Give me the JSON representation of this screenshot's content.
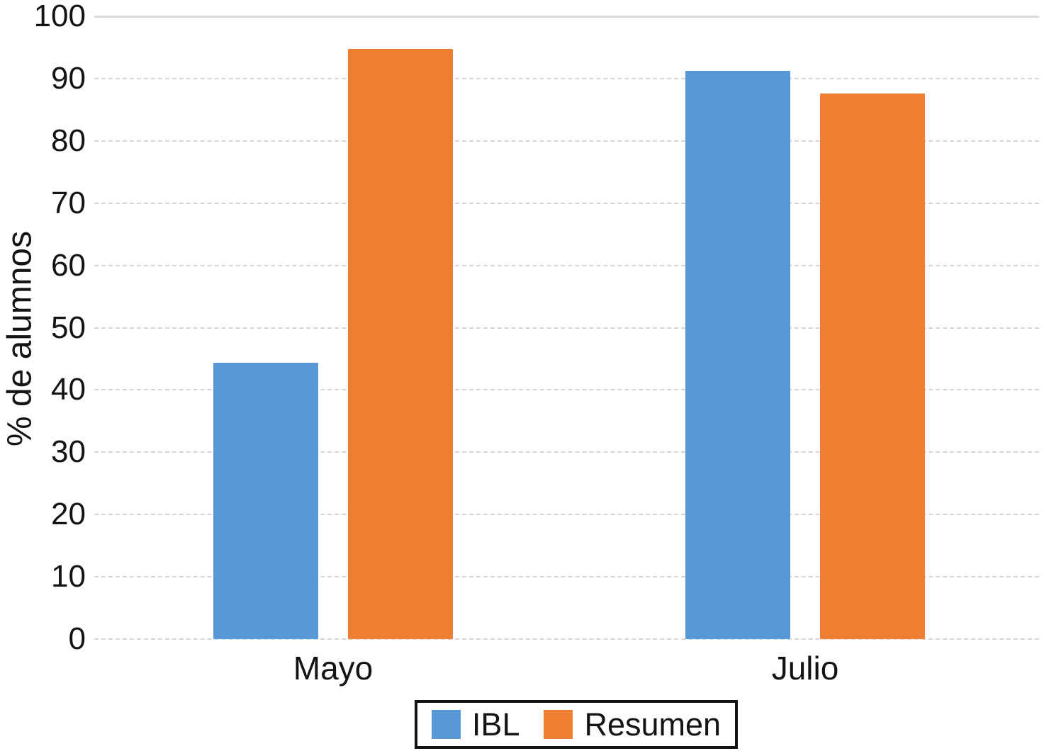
{
  "figure": {
    "background_color": "#ffffff",
    "gridline_color": "#d6d6d6",
    "text_color": "#141414"
  },
  "chart_data": {
    "type": "bar",
    "title": "",
    "xlabel": "",
    "ylabel": "% de alumnos",
    "categories": [
      "Mayo",
      "Julio"
    ],
    "series": [
      {
        "name": "IBL",
        "color": "#5899D5",
        "values": [
          44.4,
          91.2
        ]
      },
      {
        "name": "Resumen",
        "color": "#EE7E32",
        "values": [
          94.8,
          87.6
        ]
      }
    ],
    "ylim": [
      0,
      100
    ],
    "yticks": [
      0,
      10,
      20,
      30,
      40,
      50,
      60,
      70,
      80,
      90,
      100
    ],
    "grid": true,
    "legend_position": "bottom",
    "legend_border": true
  }
}
